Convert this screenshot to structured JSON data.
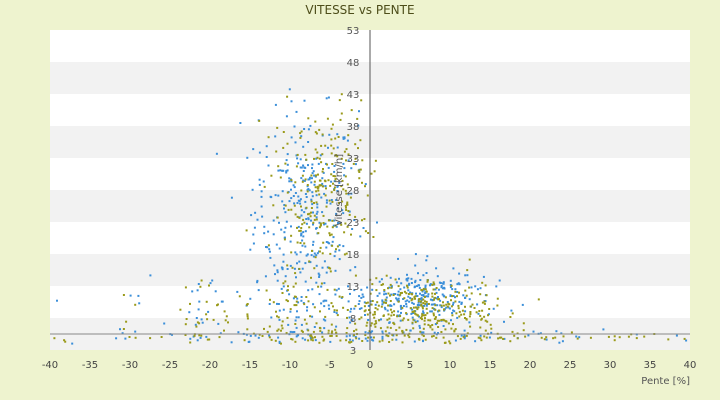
{
  "chart_data": {
    "type": "scatter",
    "title": "VITESSE vs PENTE",
    "xlabel": "Pente [%]",
    "ylabel": "Vitesse [km/h]",
    "xlim": [
      -40,
      40
    ],
    "ylim": [
      3,
      53
    ],
    "x_ticks": [
      -40,
      -35,
      -30,
      -25,
      -20,
      -15,
      -10,
      -5,
      0,
      5,
      10,
      15,
      20,
      25,
      30,
      35,
      40
    ],
    "y_ticks": [
      3,
      8,
      13,
      18,
      23,
      28,
      33,
      38,
      43,
      48,
      53
    ],
    "grid": "horizontal",
    "legend": "none",
    "series": [
      {
        "color": "#3b8fd9",
        "clusters": [
          {
            "x": -8,
            "y": 25,
            "sx": 3.2,
            "sy": 7.5,
            "n": 320
          },
          {
            "x": 6,
            "y": 11,
            "sx": 4,
            "sy": 2.5,
            "n": 260
          },
          {
            "x": -10,
            "y": 10,
            "sx": 10,
            "sy": 3,
            "n": 110
          },
          {
            "x": 0,
            "y": 5,
            "sx": 22,
            "sy": 0.6,
            "n": 90
          }
        ]
      },
      {
        "color": "#9a9a1a",
        "clusters": [
          {
            "x": -6,
            "y": 27,
            "sx": 3,
            "sy": 7,
            "n": 240
          },
          {
            "x": 7,
            "y": 9,
            "sx": 4.5,
            "sy": 2.5,
            "n": 260
          },
          {
            "x": -8,
            "y": 8,
            "sx": 10,
            "sy": 3,
            "n": 140
          },
          {
            "x": 0,
            "y": 5,
            "sx": 22,
            "sy": 0.6,
            "n": 100
          }
        ]
      }
    ]
  }
}
